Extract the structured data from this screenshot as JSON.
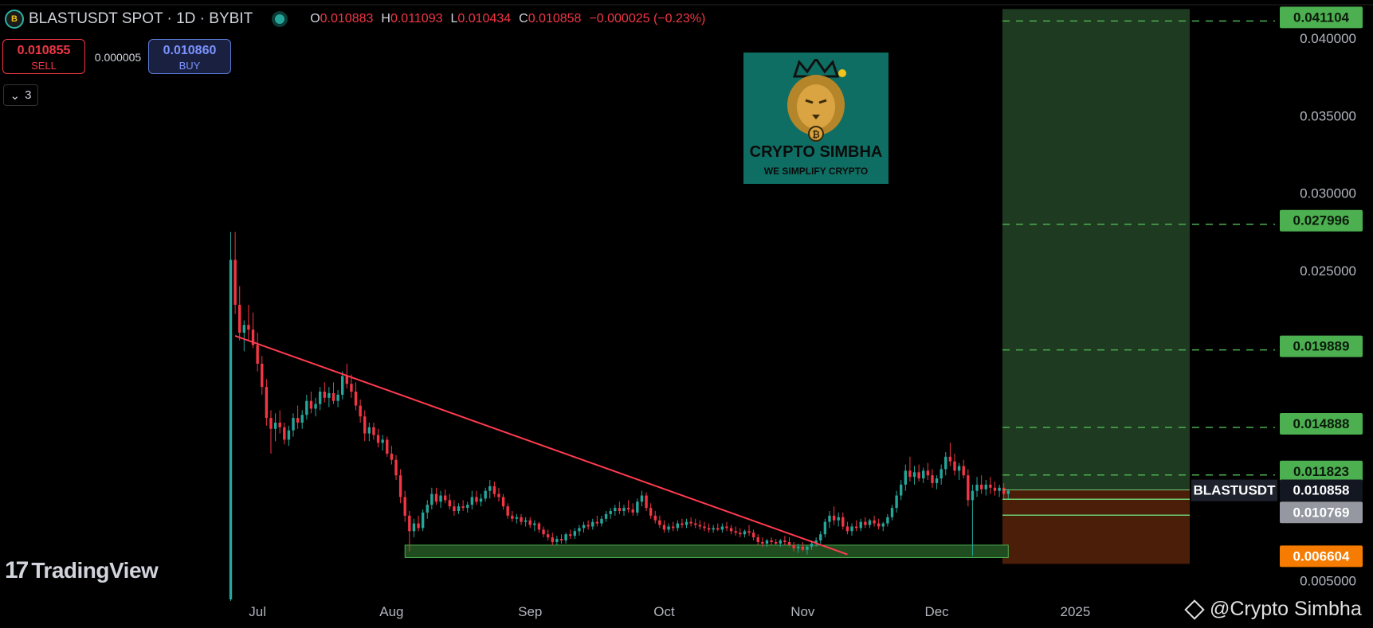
{
  "header": {
    "symbol": "BLASTUSDT SPOT · 1D · BYBIT",
    "ohlc": [
      {
        "k": "O",
        "v": "0.010883"
      },
      {
        "k": "H",
        "v": "0.011093"
      },
      {
        "k": "L",
        "v": "0.010434"
      },
      {
        "k": "C",
        "v": "0.010858"
      }
    ],
    "change": "−0.000025 (−0.23%)"
  },
  "trade": {
    "sell_price": "0.010855",
    "sell_label": "SELL",
    "spread": "0.000005",
    "buy_price": "0.010860",
    "buy_label": "BUY"
  },
  "indicators": {
    "collapse_count": "3"
  },
  "logo": {
    "name": "CRYPTO SIMBHA",
    "tagline": "WE SIMPLIFY CRYPTO"
  },
  "branding": {
    "tradingview": "TradingView",
    "watermark": "@Crypto Simbha"
  },
  "colors": {
    "up": "#26a69a",
    "down": "#f23645",
    "target": "#4caf50",
    "stop": "#f57c00",
    "trend": "#ff3b4f"
  },
  "chart_data": {
    "type": "candlestick",
    "symbol_label": "BLASTUSDT",
    "x_ticks": [
      "Jul",
      "Aug",
      "Sep",
      "Oct",
      "Nov",
      "Dec",
      "2025"
    ],
    "y_ticks": [
      0.005,
      0.025,
      0.03,
      0.035,
      0.04
    ],
    "y_ticks_text": [
      "0.005000",
      "0.025000",
      "0.030000",
      "0.035000",
      "0.040000"
    ],
    "ylim": [
      0.0037,
      0.0422
    ],
    "current_price": {
      "value": 0.010858,
      "text": "0.010858",
      "label": "BLASTUSDT"
    },
    "targets": [
      {
        "value": 0.041104,
        "text": "0.041104"
      },
      {
        "value": 0.027996,
        "text": "0.027996"
      },
      {
        "value": 0.019889,
        "text": "0.019889"
      },
      {
        "value": 0.014888,
        "text": "0.014888"
      },
      {
        "value": 0.011823,
        "text": "0.011823"
      }
    ],
    "entry": {
      "value": 0.010769,
      "text": "0.010769"
    },
    "stop": {
      "value": 0.006604,
      "text": "0.006604"
    },
    "support_zone": [
      0.0065,
      0.0073
    ],
    "trendline": {
      "from": [
        "2024-06-27",
        0.0208
      ],
      "to": [
        "2024-11-11",
        0.0067
      ]
    },
    "candles": [
      [
        "2024-06-26",
        0.0038,
        0.0275,
        0.0037,
        0.0257
      ],
      [
        "2024-06-27",
        0.0257,
        0.0275,
        0.0222,
        0.0228
      ],
      [
        "2024-06-28",
        0.0228,
        0.024,
        0.0205,
        0.021
      ],
      [
        "2024-06-29",
        0.021,
        0.0218,
        0.0198,
        0.0215
      ],
      [
        "2024-06-30",
        0.0215,
        0.0228,
        0.0205,
        0.0212
      ],
      [
        "2024-07-01",
        0.0212,
        0.0223,
        0.02,
        0.0202
      ],
      [
        "2024-07-02",
        0.0202,
        0.021,
        0.0185,
        0.019
      ],
      [
        "2024-07-03",
        0.019,
        0.0195,
        0.017,
        0.0175
      ],
      [
        "2024-07-04",
        0.0175,
        0.018,
        0.015,
        0.0155
      ],
      [
        "2024-07-05",
        0.0155,
        0.016,
        0.0132,
        0.0148
      ],
      [
        "2024-07-06",
        0.0148,
        0.0158,
        0.014,
        0.0152
      ],
      [
        "2024-07-07",
        0.0152,
        0.016,
        0.0145,
        0.0149
      ],
      [
        "2024-07-08",
        0.0149,
        0.0152,
        0.0138,
        0.0141
      ],
      [
        "2024-07-09",
        0.0141,
        0.015,
        0.0137,
        0.0147
      ],
      [
        "2024-07-10",
        0.0147,
        0.0158,
        0.0143,
        0.0155
      ],
      [
        "2024-07-11",
        0.0155,
        0.0163,
        0.0148,
        0.0152
      ],
      [
        "2024-07-12",
        0.0152,
        0.016,
        0.0148,
        0.0157
      ],
      [
        "2024-07-13",
        0.0157,
        0.017,
        0.0154,
        0.0166
      ],
      [
        "2024-07-14",
        0.0166,
        0.0172,
        0.0158,
        0.0161
      ],
      [
        "2024-07-15",
        0.0161,
        0.0168,
        0.0156,
        0.0164
      ],
      [
        "2024-07-16",
        0.0164,
        0.0175,
        0.016,
        0.0172
      ],
      [
        "2024-07-17",
        0.0172,
        0.0178,
        0.0165,
        0.0168
      ],
      [
        "2024-07-18",
        0.0168,
        0.0175,
        0.0162,
        0.0171
      ],
      [
        "2024-07-19",
        0.0171,
        0.0178,
        0.0164,
        0.0166
      ],
      [
        "2024-07-20",
        0.0166,
        0.0173,
        0.0162,
        0.017
      ],
      [
        "2024-07-21",
        0.017,
        0.0185,
        0.0167,
        0.0182
      ],
      [
        "2024-07-22",
        0.0182,
        0.019,
        0.0174,
        0.0177
      ],
      [
        "2024-07-23",
        0.0177,
        0.0183,
        0.0168,
        0.0172
      ],
      [
        "2024-07-24",
        0.0172,
        0.0178,
        0.016,
        0.0163
      ],
      [
        "2024-07-25",
        0.0163,
        0.0167,
        0.0152,
        0.0156
      ],
      [
        "2024-07-26",
        0.0156,
        0.016,
        0.014,
        0.0145
      ],
      [
        "2024-07-27",
        0.0145,
        0.0152,
        0.014,
        0.0149
      ],
      [
        "2024-07-28",
        0.0149,
        0.0152,
        0.0141,
        0.0144
      ],
      [
        "2024-07-29",
        0.0144,
        0.0148,
        0.0136,
        0.0139
      ],
      [
        "2024-07-30",
        0.0139,
        0.0144,
        0.0134,
        0.0141
      ],
      [
        "2024-07-31",
        0.0141,
        0.0143,
        0.013,
        0.0132
      ],
      [
        "2024-08-01",
        0.0132,
        0.0137,
        0.0125,
        0.0128
      ],
      [
        "2024-08-02",
        0.0128,
        0.0131,
        0.0115,
        0.0118
      ],
      [
        "2024-08-03",
        0.0118,
        0.0122,
        0.01,
        0.0104
      ],
      [
        "2024-08-04",
        0.0104,
        0.0108,
        0.0088,
        0.0092
      ],
      [
        "2024-08-05",
        0.0092,
        0.0095,
        0.0069,
        0.0082
      ],
      [
        "2024-08-06",
        0.0082,
        0.009,
        0.0078,
        0.0087
      ],
      [
        "2024-08-07",
        0.0087,
        0.0092,
        0.0082,
        0.0084
      ],
      [
        "2024-08-08",
        0.0084,
        0.0096,
        0.0082,
        0.0094
      ],
      [
        "2024-08-09",
        0.0094,
        0.0102,
        0.009,
        0.0099
      ],
      [
        "2024-08-10",
        0.0099,
        0.011,
        0.0096,
        0.0106
      ],
      [
        "2024-08-11",
        0.0106,
        0.011,
        0.0099,
        0.0101
      ],
      [
        "2024-08-12",
        0.0101,
        0.0108,
        0.0097,
        0.0105
      ],
      [
        "2024-08-13",
        0.0105,
        0.0109,
        0.01,
        0.0102
      ],
      [
        "2024-08-14",
        0.0102,
        0.0106,
        0.0096,
        0.0098
      ],
      [
        "2024-08-15",
        0.0098,
        0.0102,
        0.0092,
        0.0095
      ],
      [
        "2024-08-16",
        0.0095,
        0.01,
        0.0093,
        0.0098
      ],
      [
        "2024-08-17",
        0.0098,
        0.0102,
        0.0095,
        0.0097
      ],
      [
        "2024-08-18",
        0.0097,
        0.0101,
        0.0094,
        0.0099
      ],
      [
        "2024-08-19",
        0.0099,
        0.0108,
        0.0096,
        0.0104
      ],
      [
        "2024-08-20",
        0.0104,
        0.0108,
        0.0099,
        0.0101
      ],
      [
        "2024-08-21",
        0.0101,
        0.0106,
        0.0098,
        0.0103
      ],
      [
        "2024-08-22",
        0.0103,
        0.011,
        0.0101,
        0.0108
      ],
      [
        "2024-08-23",
        0.0108,
        0.0115,
        0.0103,
        0.0111
      ],
      [
        "2024-08-24",
        0.0111,
        0.0114,
        0.0104,
        0.0106
      ],
      [
        "2024-08-25",
        0.0106,
        0.011,
        0.0101,
        0.0104
      ],
      [
        "2024-08-26",
        0.0104,
        0.0106,
        0.0096,
        0.0098
      ],
      [
        "2024-08-27",
        0.0098,
        0.01,
        0.009,
        0.0092
      ],
      [
        "2024-08-28",
        0.0092,
        0.0095,
        0.0088,
        0.009
      ],
      [
        "2024-08-29",
        0.009,
        0.0093,
        0.0087,
        0.0091
      ],
      [
        "2024-08-30",
        0.0091,
        0.0093,
        0.0086,
        0.0088
      ],
      [
        "2024-08-31",
        0.0088,
        0.0091,
        0.0085,
        0.0089
      ],
      [
        "2024-09-01",
        0.0089,
        0.0091,
        0.0084,
        0.0086
      ],
      [
        "2024-09-02",
        0.0086,
        0.0089,
        0.0082,
        0.0087
      ],
      [
        "2024-09-03",
        0.0087,
        0.0088,
        0.0081,
        0.0083
      ],
      [
        "2024-09-04",
        0.0083,
        0.0085,
        0.0078,
        0.008
      ],
      [
        "2024-09-05",
        0.008,
        0.0083,
        0.0076,
        0.0078
      ],
      [
        "2024-09-06",
        0.0078,
        0.0081,
        0.0073,
        0.0075
      ],
      [
        "2024-09-07",
        0.0075,
        0.0079,
        0.0073,
        0.0077
      ],
      [
        "2024-09-08",
        0.0077,
        0.008,
        0.0074,
        0.0076
      ],
      [
        "2024-09-09",
        0.0076,
        0.0081,
        0.0074,
        0.008
      ],
      [
        "2024-09-10",
        0.008,
        0.0083,
        0.0077,
        0.0079
      ],
      [
        "2024-09-11",
        0.0079,
        0.0084,
        0.0077,
        0.0082
      ],
      [
        "2024-09-12",
        0.0082,
        0.0086,
        0.0079,
        0.0084
      ],
      [
        "2024-09-13",
        0.0084,
        0.0088,
        0.0081,
        0.0086
      ],
      [
        "2024-09-14",
        0.0086,
        0.0089,
        0.0083,
        0.0085
      ],
      [
        "2024-09-15",
        0.0085,
        0.009,
        0.0083,
        0.0088
      ],
      [
        "2024-09-16",
        0.0088,
        0.0092,
        0.0085,
        0.0087
      ],
      [
        "2024-09-17",
        0.0087,
        0.0092,
        0.0085,
        0.009
      ],
      [
        "2024-09-18",
        0.009,
        0.0095,
        0.0088,
        0.0093
      ],
      [
        "2024-09-19",
        0.0093,
        0.0097,
        0.009,
        0.0095
      ],
      [
        "2024-09-20",
        0.0095,
        0.0099,
        0.0092,
        0.0097
      ],
      [
        "2024-09-21",
        0.0097,
        0.0101,
        0.0093,
        0.0095
      ],
      [
        "2024-09-22",
        0.0095,
        0.0099,
        0.0092,
        0.0097
      ],
      [
        "2024-09-23",
        0.0097,
        0.0102,
        0.0094,
        0.0096
      ],
      [
        "2024-09-24",
        0.0096,
        0.01,
        0.0092,
        0.0094
      ],
      [
        "2024-09-25",
        0.0094,
        0.0103,
        0.0092,
        0.0101
      ],
      [
        "2024-09-26",
        0.0101,
        0.0108,
        0.0098,
        0.0105
      ],
      [
        "2024-09-27",
        0.0105,
        0.0107,
        0.0095,
        0.0097
      ],
      [
        "2024-09-28",
        0.0097,
        0.01,
        0.009,
        0.0092
      ],
      [
        "2024-09-29",
        0.0092,
        0.0095,
        0.0087,
        0.0089
      ],
      [
        "2024-09-30",
        0.0089,
        0.0092,
        0.0084,
        0.0086
      ],
      [
        "2024-10-01",
        0.0086,
        0.0089,
        0.0081,
        0.0083
      ],
      [
        "2024-10-02",
        0.0083,
        0.0087,
        0.0081,
        0.0085
      ],
      [
        "2024-10-03",
        0.0085,
        0.0088,
        0.0082,
        0.0084
      ],
      [
        "2024-10-04",
        0.0084,
        0.0089,
        0.0082,
        0.0087
      ],
      [
        "2024-10-05",
        0.0087,
        0.009,
        0.0084,
        0.0086
      ],
      [
        "2024-10-06",
        0.0086,
        0.009,
        0.0084,
        0.0088
      ],
      [
        "2024-10-07",
        0.0088,
        0.0091,
        0.0085,
        0.0087
      ],
      [
        "2024-10-08",
        0.0087,
        0.009,
        0.0084,
        0.0086
      ],
      [
        "2024-10-09",
        0.0086,
        0.0089,
        0.0083,
        0.0085
      ],
      [
        "2024-10-10",
        0.0085,
        0.0088,
        0.0082,
        0.0084
      ],
      [
        "2024-10-11",
        0.0084,
        0.0087,
        0.0081,
        0.0083
      ],
      [
        "2024-10-12",
        0.0083,
        0.0086,
        0.0081,
        0.0084
      ],
      [
        "2024-10-13",
        0.0084,
        0.0087,
        0.0082,
        0.0083
      ],
      [
        "2024-10-14",
        0.0083,
        0.0087,
        0.0081,
        0.0085
      ],
      [
        "2024-10-15",
        0.0085,
        0.0088,
        0.0082,
        0.0084
      ],
      [
        "2024-10-16",
        0.0084,
        0.0086,
        0.008,
        0.0082
      ],
      [
        "2024-10-17",
        0.0082,
        0.0085,
        0.0079,
        0.0081
      ],
      [
        "2024-10-18",
        0.0081,
        0.0084,
        0.0078,
        0.008
      ],
      [
        "2024-10-19",
        0.008,
        0.0083,
        0.0078,
        0.0082
      ],
      [
        "2024-10-20",
        0.0082,
        0.0086,
        0.0079,
        0.0081
      ],
      [
        "2024-10-21",
        0.0081,
        0.0083,
        0.0076,
        0.0078
      ],
      [
        "2024-10-22",
        0.0078,
        0.008,
        0.0073,
        0.0075
      ],
      [
        "2024-10-23",
        0.0075,
        0.0078,
        0.0072,
        0.0074
      ],
      [
        "2024-10-24",
        0.0074,
        0.0077,
        0.0072,
        0.0076
      ],
      [
        "2024-10-25",
        0.0076,
        0.0078,
        0.0073,
        0.0075
      ],
      [
        "2024-10-26",
        0.0075,
        0.0077,
        0.0073,
        0.0074
      ],
      [
        "2024-10-27",
        0.0074,
        0.0077,
        0.0072,
        0.0076
      ],
      [
        "2024-10-28",
        0.0076,
        0.0079,
        0.0073,
        0.0075
      ],
      [
        "2024-10-29",
        0.0075,
        0.0078,
        0.0072,
        0.0073
      ],
      [
        "2024-10-30",
        0.0073,
        0.0075,
        0.0069,
        0.0071
      ],
      [
        "2024-10-31",
        0.0071,
        0.0074,
        0.0068,
        0.0072
      ],
      [
        "2024-11-01",
        0.0072,
        0.0075,
        0.0069,
        0.007
      ],
      [
        "2024-11-02",
        0.007,
        0.0073,
        0.0067,
        0.0072
      ],
      [
        "2024-11-03",
        0.0072,
        0.0076,
        0.007,
        0.0074
      ],
      [
        "2024-11-04",
        0.0074,
        0.0078,
        0.0072,
        0.0076
      ],
      [
        "2024-11-05",
        0.0076,
        0.0082,
        0.0074,
        0.008
      ],
      [
        "2024-11-06",
        0.008,
        0.009,
        0.0078,
        0.0088
      ],
      [
        "2024-11-07",
        0.0088,
        0.0095,
        0.0084,
        0.0092
      ],
      [
        "2024-11-08",
        0.0092,
        0.0098,
        0.0086,
        0.0089
      ],
      [
        "2024-11-09",
        0.0089,
        0.0094,
        0.0085,
        0.0091
      ],
      [
        "2024-11-10",
        0.0091,
        0.0094,
        0.0083,
        0.0085
      ],
      [
        "2024-11-11",
        0.0085,
        0.0088,
        0.008,
        0.0082
      ],
      [
        "2024-11-12",
        0.0082,
        0.0087,
        0.0079,
        0.0085
      ],
      [
        "2024-11-13",
        0.0085,
        0.0089,
        0.0082,
        0.0084
      ],
      [
        "2024-11-14",
        0.0084,
        0.009,
        0.0082,
        0.0088
      ],
      [
        "2024-11-15",
        0.0088,
        0.0091,
        0.0084,
        0.0086
      ],
      [
        "2024-11-16",
        0.0086,
        0.009,
        0.0084,
        0.0089
      ],
      [
        "2024-11-17",
        0.0089,
        0.0092,
        0.0085,
        0.0087
      ],
      [
        "2024-11-18",
        0.0087,
        0.009,
        0.0083,
        0.0085
      ],
      [
        "2024-11-19",
        0.0085,
        0.0088,
        0.0082,
        0.0087
      ],
      [
        "2024-11-20",
        0.0087,
        0.0093,
        0.0085,
        0.0091
      ],
      [
        "2024-11-21",
        0.0091,
        0.0099,
        0.0089,
        0.0097
      ],
      [
        "2024-11-22",
        0.0097,
        0.0108,
        0.0094,
        0.0105
      ],
      [
        "2024-11-23",
        0.0105,
        0.0115,
        0.0102,
        0.0112
      ],
      [
        "2024-11-24",
        0.0112,
        0.0125,
        0.0108,
        0.0121
      ],
      [
        "2024-11-25",
        0.0121,
        0.013,
        0.0114,
        0.0117
      ],
      [
        "2024-11-26",
        0.0117,
        0.0124,
        0.0112,
        0.012
      ],
      [
        "2024-11-27",
        0.012,
        0.0125,
        0.0114,
        0.0116
      ],
      [
        "2024-11-28",
        0.0116,
        0.0123,
        0.0113,
        0.0121
      ],
      [
        "2024-11-29",
        0.0121,
        0.0126,
        0.0115,
        0.0118
      ],
      [
        "2024-11-30",
        0.0118,
        0.0122,
        0.011,
        0.0113
      ],
      [
        "2024-12-01",
        0.0113,
        0.0118,
        0.0109,
        0.0116
      ],
      [
        "2024-12-02",
        0.0116,
        0.0125,
        0.0112,
        0.0122
      ],
      [
        "2024-12-03",
        0.0122,
        0.0133,
        0.0118,
        0.013
      ],
      [
        "2024-12-04",
        0.013,
        0.0139,
        0.0124,
        0.0127
      ],
      [
        "2024-12-05",
        0.0127,
        0.0132,
        0.0118,
        0.0121
      ],
      [
        "2024-12-06",
        0.0121,
        0.0126,
        0.0115,
        0.0124
      ],
      [
        "2024-12-07",
        0.0124,
        0.0128,
        0.0116,
        0.0118
      ],
      [
        "2024-12-08",
        0.0118,
        0.0122,
        0.0098,
        0.0102
      ],
      [
        "2024-12-09",
        0.0102,
        0.0112,
        0.0066,
        0.0108
      ],
      [
        "2024-12-10",
        0.0108,
        0.0117,
        0.0104,
        0.0112
      ],
      [
        "2024-12-11",
        0.0112,
        0.0118,
        0.0106,
        0.0109
      ],
      [
        "2024-12-12",
        0.0109,
        0.0115,
        0.0105,
        0.0112
      ],
      [
        "2024-12-13",
        0.0112,
        0.0117,
        0.0106,
        0.011
      ],
      [
        "2024-12-14",
        0.011,
        0.0114,
        0.0105,
        0.0108
      ],
      [
        "2024-12-15",
        0.0108,
        0.0112,
        0.0104,
        0.011
      ],
      [
        "2024-12-16",
        0.011,
        0.0113,
        0.0103,
        0.0106
      ],
      [
        "2024-12-17",
        0.0106,
        0.0109,
        0.0103,
        0.0108
      ]
    ]
  }
}
